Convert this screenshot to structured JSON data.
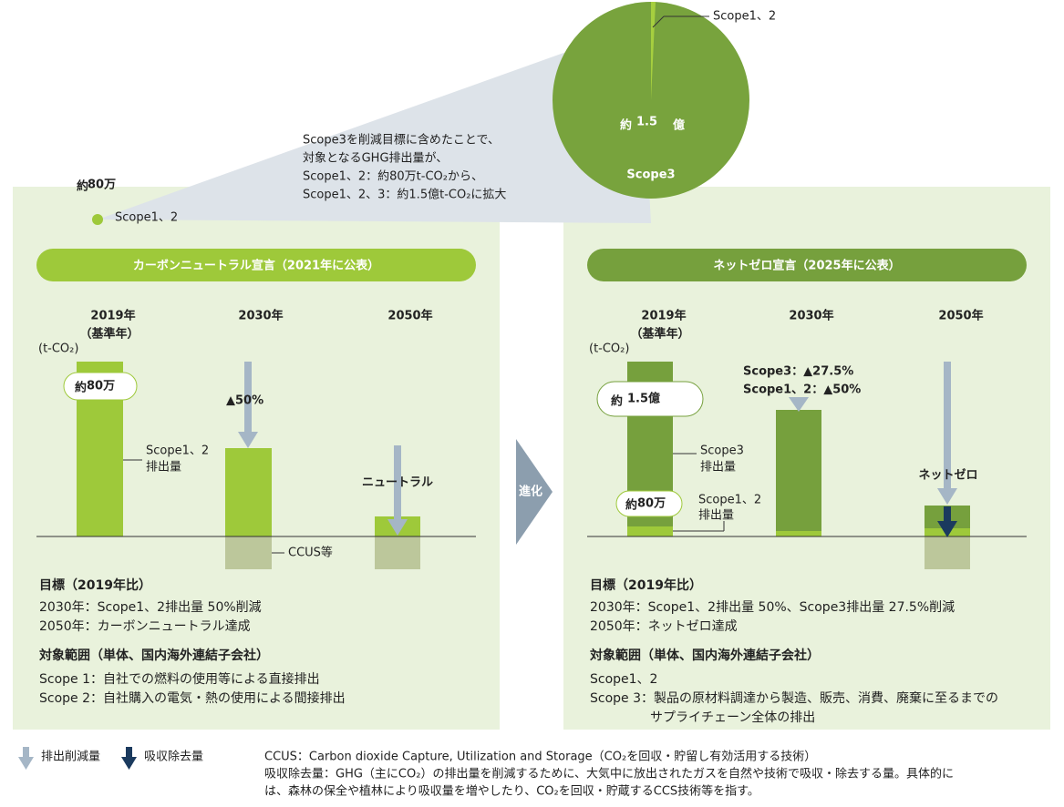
{
  "top": {
    "small_value_prefix": "約",
    "small_value": "80万",
    "small_label": "Scope1、2",
    "callout": [
      "Scope3を削減目標に含めたことで、",
      "対象となるGHG排出量が、",
      "Scope1、2：約80万t-CO₂から、",
      "Scope1、2、3：約1.5億t-CO₂に拡大"
    ],
    "pie_scope12_label": "Scope1、2",
    "pie_value_prefix": "約",
    "pie_value": "1.5",
    "pie_value_unit": "億",
    "pie_label": "Scope3"
  },
  "left": {
    "header": "カーボンニュートラル宣言（2021年に公表）",
    "years": [
      "2019年",
      "2030年",
      "2050年"
    ],
    "base_year": "（基準年）",
    "unit": "(t-CO₂)",
    "bar1_badge_prefix": "約",
    "bar1_badge": "80万",
    "bar1_label": [
      "Scope1、2",
      "排出量"
    ],
    "bar2_label": "▲50%",
    "bar3_label": "ニュートラル",
    "ccus_label": "CCUS等",
    "goal_title": "目標（2019年比）",
    "goals": [
      "2030年：Scope1、2排出量 50%削減",
      "2050年：カーボンニュートラル達成"
    ],
    "scope_title": "対象範囲（単体、国内海外連結子会社）",
    "scopes": [
      "Scope 1：自社での燃料の使用等による直接排出",
      "Scope 2：自社購入の電気・熱の使用による間接排出"
    ]
  },
  "arrow_label": "進化",
  "right": {
    "header": "ネットゼロ宣言（2025年に公表）",
    "years": [
      "2019年",
      "2030年",
      "2050年"
    ],
    "base_year": "（基準年）",
    "unit": "(t-CO₂)",
    "bar1_badge_prefix": "約",
    "bar1_badge": "1.5億",
    "bar1_label": [
      "Scope3",
      "排出量"
    ],
    "bar1_small_badge_prefix": "約",
    "bar1_small_badge": "80万",
    "bar1_small_label": [
      "Scope1、2",
      "排出量"
    ],
    "bar2_labels": [
      "Scope3：▲27.5%",
      "Scope1、2：▲50%"
    ],
    "bar3_label": "ネットゼロ",
    "goal_title": "目標（2019年比）",
    "goals": [
      "2030年：Scope1、2排出量 50%、Scope3排出量 27.5%削減",
      "2050年：ネットゼロ達成"
    ],
    "scope_title": "対象範囲（単体、国内海外連結子会社）",
    "scopes": [
      "Scope1、2",
      "Scope 3：製品の原材料調達から製造、販売、消費、廃棄に至るまでの",
      "サプライチェーン全体の排出"
    ]
  },
  "legend": [
    "排出削減量",
    "吸収除去量"
  ],
  "notes": [
    "CCUS：Carbon dioxide Capture, Utilization and Storage（CO₂を回収・貯留し有効活用する技術）",
    "吸収除去量：GHG（主にCO₂）の排出量を削減するために、大気中に放出されたガスを自然や技術で吸収・除去する量。具体的に",
    "は、森林の保全や植林により吸収量を増やしたり、CO₂を回収・貯蔵するCCS技術等を指す。"
  ]
}
